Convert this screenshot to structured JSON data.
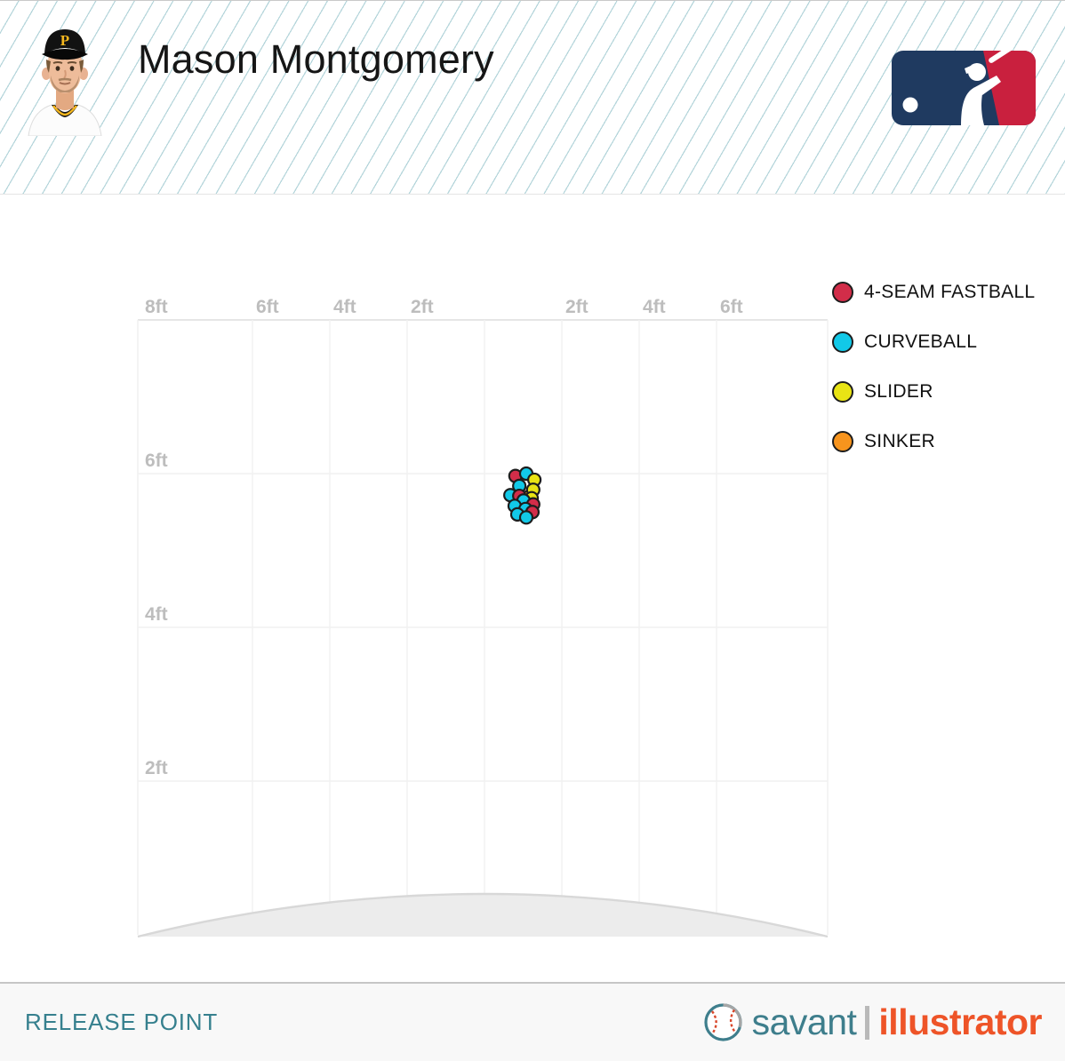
{
  "header": {
    "title": "Mason Montgomery",
    "cap_letter": "P"
  },
  "chart_data": {
    "type": "scatter",
    "title": "Release Point",
    "x_axis": {
      "unit": "ft",
      "range_ft": [
        -8.95,
        8.9
      ],
      "gridlines_ft": [
        -6,
        -4,
        -2,
        0,
        2,
        4,
        6
      ],
      "tick_labels": [
        {
          "value_ft": -8,
          "label": "8ft"
        },
        {
          "value_ft": -6,
          "label": "6ft"
        },
        {
          "value_ft": -4,
          "label": "4ft"
        },
        {
          "value_ft": -2,
          "label": "2ft"
        },
        {
          "value_ft": 2,
          "label": "2ft"
        },
        {
          "value_ft": 4,
          "label": "4ft"
        },
        {
          "value_ft": 6,
          "label": "6ft"
        }
      ]
    },
    "y_axis": {
      "unit": "ft",
      "range_ft": [
        0,
        8
      ],
      "gridlines_ft": [
        2,
        4,
        6
      ],
      "tick_labels": [
        {
          "value_ft": 6,
          "label": "6ft"
        },
        {
          "value_ft": 4,
          "label": "4ft"
        },
        {
          "value_ft": 2,
          "label": "2ft"
        }
      ]
    },
    "grid": true,
    "mound": true,
    "axis_label_color": "#bdbdbd",
    "legend": {
      "position": "right",
      "items": [
        {
          "code": "FF",
          "label": "4-SEAM FASTBALL",
          "color": "#d22d49"
        },
        {
          "code": "CU",
          "label": "CURVEBALL",
          "color": "#12c9e8"
        },
        {
          "code": "SL",
          "label": "SLIDER",
          "color": "#e9e414"
        },
        {
          "code": "SI",
          "label": "SINKER",
          "color": "#f7941d"
        }
      ]
    },
    "points": [
      {
        "pitch": "SI",
        "x_ft": 1.15,
        "z_ft": 5.7
      },
      {
        "pitch": "FF",
        "x_ft": 0.8,
        "z_ft": 5.97
      },
      {
        "pitch": "CU",
        "x_ft": 1.08,
        "z_ft": 6.0
      },
      {
        "pitch": "SL",
        "x_ft": 1.29,
        "z_ft": 5.92
      },
      {
        "pitch": "CU",
        "x_ft": 0.9,
        "z_ft": 5.84
      },
      {
        "pitch": "SL",
        "x_ft": 1.26,
        "z_ft": 5.79
      },
      {
        "pitch": "CU",
        "x_ft": 0.67,
        "z_ft": 5.72
      },
      {
        "pitch": "FF",
        "x_ft": 0.9,
        "z_ft": 5.71
      },
      {
        "pitch": "SL",
        "x_ft": 1.22,
        "z_ft": 5.68
      },
      {
        "pitch": "CU",
        "x_ft": 1.01,
        "z_ft": 5.65
      },
      {
        "pitch": "FF",
        "x_ft": 1.26,
        "z_ft": 5.6
      },
      {
        "pitch": "CU",
        "x_ft": 0.78,
        "z_ft": 5.58
      },
      {
        "pitch": "CU",
        "x_ft": 1.06,
        "z_ft": 5.54
      },
      {
        "pitch": "FF",
        "x_ft": 1.24,
        "z_ft": 5.5
      },
      {
        "pitch": "CU",
        "x_ft": 0.85,
        "z_ft": 5.47
      },
      {
        "pitch": "CU",
        "x_ft": 1.08,
        "z_ft": 5.43
      }
    ]
  },
  "footer": {
    "label": "RELEASE POINT",
    "brand": {
      "savant": "savant",
      "illustrator": "illustrator"
    }
  }
}
